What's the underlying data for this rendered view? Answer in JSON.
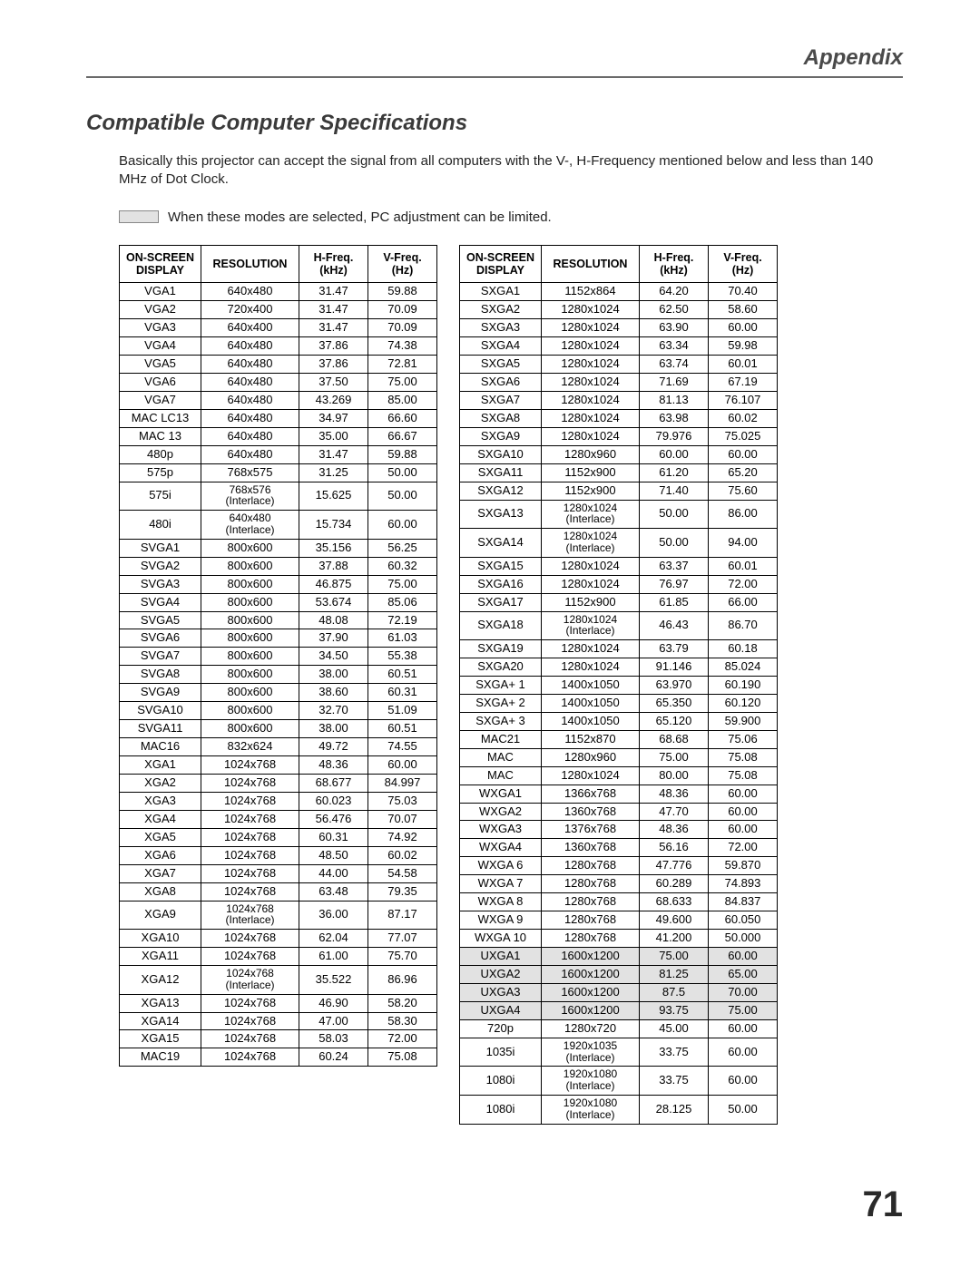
{
  "header": {
    "title": "Appendix"
  },
  "section": {
    "title": "Compatible Computer Specifications",
    "intro": "Basically this projector can accept the signal from all computers with the V-, H-Frequency mentioned below and less than 140 MHz of Dot Clock.",
    "legend": "When these modes are selected, PC adjustment can be limited."
  },
  "table_headers": {
    "display": "ON-SCREEN DISPLAY",
    "resolution": "RESOLUTION",
    "hfreq": "H-Freq. (kHz)",
    "vfreq": "V-Freq. (Hz)"
  },
  "colors": {
    "limited_bg": "#e2e2e2",
    "border": "#000000",
    "text": "#222222",
    "heading": "#3a3a3a"
  },
  "left_rows": [
    {
      "d": "VGA1",
      "r": "640x480",
      "h": "31.47",
      "v": "59.88"
    },
    {
      "d": "VGA2",
      "r": "720x400",
      "h": "31.47",
      "v": "70.09"
    },
    {
      "d": "VGA3",
      "r": "640x400",
      "h": "31.47",
      "v": "70.09"
    },
    {
      "d": "VGA4",
      "r": "640x480",
      "h": "37.86",
      "v": "74.38"
    },
    {
      "d": "VGA5",
      "r": "640x480",
      "h": "37.86",
      "v": "72.81"
    },
    {
      "d": "VGA6",
      "r": "640x480",
      "h": "37.50",
      "v": "75.00"
    },
    {
      "d": "VGA7",
      "r": "640x480",
      "h": "43.269",
      "v": "85.00"
    },
    {
      "d": "MAC LC13",
      "r": "640x480",
      "h": "34.97",
      "v": "66.60"
    },
    {
      "d": "MAC 13",
      "r": "640x480",
      "h": "35.00",
      "v": "66.67"
    },
    {
      "d": "480p",
      "r": "640x480",
      "h": "31.47",
      "v": "59.88"
    },
    {
      "d": "575p",
      "r": "768x575",
      "h": "31.25",
      "v": "50.00"
    },
    {
      "d": "575i",
      "r": "768x576",
      "r2": "(Interlace)",
      "h": "15.625",
      "v": "50.00"
    },
    {
      "d": "480i",
      "r": "640x480",
      "r2": "(Interlace)",
      "h": "15.734",
      "v": "60.00"
    },
    {
      "d": "SVGA1",
      "r": "800x600",
      "h": "35.156",
      "v": "56.25"
    },
    {
      "d": "SVGA2",
      "r": "800x600",
      "h": "37.88",
      "v": "60.32"
    },
    {
      "d": "SVGA3",
      "r": "800x600",
      "h": "46.875",
      "v": "75.00"
    },
    {
      "d": "SVGA4",
      "r": "800x600",
      "h": "53.674",
      "v": "85.06"
    },
    {
      "d": "SVGA5",
      "r": "800x600",
      "h": "48.08",
      "v": "72.19"
    },
    {
      "d": "SVGA6",
      "r": "800x600",
      "h": "37.90",
      "v": "61.03"
    },
    {
      "d": "SVGA7",
      "r": "800x600",
      "h": "34.50",
      "v": "55.38"
    },
    {
      "d": "SVGA8",
      "r": "800x600",
      "h": "38.00",
      "v": "60.51"
    },
    {
      "d": "SVGA9",
      "r": "800x600",
      "h": "38.60",
      "v": "60.31"
    },
    {
      "d": "SVGA10",
      "r": "800x600",
      "h": "32.70",
      "v": "51.09"
    },
    {
      "d": "SVGA11",
      "r": "800x600",
      "h": "38.00",
      "v": "60.51"
    },
    {
      "d": "MAC16",
      "r": "832x624",
      "h": "49.72",
      "v": "74.55"
    },
    {
      "d": "XGA1",
      "r": "1024x768",
      "h": "48.36",
      "v": "60.00"
    },
    {
      "d": "XGA2",
      "r": "1024x768",
      "h": "68.677",
      "v": "84.997"
    },
    {
      "d": "XGA3",
      "r": "1024x768",
      "h": "60.023",
      "v": "75.03"
    },
    {
      "d": "XGA4",
      "r": "1024x768",
      "h": "56.476",
      "v": "70.07"
    },
    {
      "d": "XGA5",
      "r": "1024x768",
      "h": "60.31",
      "v": "74.92"
    },
    {
      "d": "XGA6",
      "r": "1024x768",
      "h": "48.50",
      "v": "60.02"
    },
    {
      "d": "XGA7",
      "r": "1024x768",
      "h": "44.00",
      "v": "54.58"
    },
    {
      "d": "XGA8",
      "r": "1024x768",
      "h": "63.48",
      "v": "79.35"
    },
    {
      "d": "XGA9",
      "r": "1024x768",
      "r2": "(Interlace)",
      "h": "36.00",
      "v": "87.17"
    },
    {
      "d": "XGA10",
      "r": "1024x768",
      "h": "62.04",
      "v": "77.07"
    },
    {
      "d": "XGA11",
      "r": "1024x768",
      "h": "61.00",
      "v": "75.70"
    },
    {
      "d": "XGA12",
      "r": "1024x768",
      "r2": "(Interlace)",
      "h": "35.522",
      "v": "86.96"
    },
    {
      "d": "XGA13",
      "r": "1024x768",
      "h": "46.90",
      "v": "58.20"
    },
    {
      "d": "XGA14",
      "r": "1024x768",
      "h": "47.00",
      "v": "58.30"
    },
    {
      "d": "XGA15",
      "r": "1024x768",
      "h": "58.03",
      "v": "72.00"
    },
    {
      "d": "MAC19",
      "r": "1024x768",
      "h": "60.24",
      "v": "75.08"
    }
  ],
  "right_rows": [
    {
      "d": "SXGA1",
      "r": "1152x864",
      "h": "64.20",
      "v": "70.40"
    },
    {
      "d": "SXGA2",
      "r": "1280x1024",
      "h": "62.50",
      "v": "58.60"
    },
    {
      "d": "SXGA3",
      "r": "1280x1024",
      "h": "63.90",
      "v": "60.00"
    },
    {
      "d": "SXGA4",
      "r": "1280x1024",
      "h": "63.34",
      "v": "59.98"
    },
    {
      "d": "SXGA5",
      "r": "1280x1024",
      "h": "63.74",
      "v": "60.01"
    },
    {
      "d": "SXGA6",
      "r": "1280x1024",
      "h": "71.69",
      "v": "67.19"
    },
    {
      "d": "SXGA7",
      "r": "1280x1024",
      "h": "81.13",
      "v": "76.107"
    },
    {
      "d": "SXGA8",
      "r": "1280x1024",
      "h": "63.98",
      "v": "60.02"
    },
    {
      "d": "SXGA9",
      "r": "1280x1024",
      "h": "79.976",
      "v": "75.025"
    },
    {
      "d": "SXGA10",
      "r": "1280x960",
      "h": "60.00",
      "v": "60.00"
    },
    {
      "d": "SXGA11",
      "r": "1152x900",
      "h": "61.20",
      "v": "65.20"
    },
    {
      "d": "SXGA12",
      "r": "1152x900",
      "h": "71.40",
      "v": "75.60"
    },
    {
      "d": "SXGA13",
      "r": "1280x1024",
      "r2": "(Interlace)",
      "h": "50.00",
      "v": "86.00"
    },
    {
      "d": "SXGA14",
      "r": "1280x1024",
      "r2": "(Interlace)",
      "h": "50.00",
      "v": "94.00"
    },
    {
      "d": "SXGA15",
      "r": "1280x1024",
      "h": "63.37",
      "v": "60.01"
    },
    {
      "d": "SXGA16",
      "r": "1280x1024",
      "h": "76.97",
      "v": "72.00"
    },
    {
      "d": "SXGA17",
      "r": "1152x900",
      "h": "61.85",
      "v": "66.00"
    },
    {
      "d": "SXGA18",
      "r": "1280x1024",
      "r2": "(Interlace)",
      "h": "46.43",
      "v": "86.70"
    },
    {
      "d": "SXGA19",
      "r": "1280x1024",
      "h": "63.79",
      "v": "60.18"
    },
    {
      "d": "SXGA20",
      "r": "1280x1024",
      "h": "91.146",
      "v": "85.024"
    },
    {
      "d": "SXGA+ 1",
      "r": "1400x1050",
      "h": "63.970",
      "v": "60.190"
    },
    {
      "d": "SXGA+ 2",
      "r": "1400x1050",
      "h": "65.350",
      "v": "60.120"
    },
    {
      "d": "SXGA+ 3",
      "r": "1400x1050",
      "h": "65.120",
      "v": "59.900"
    },
    {
      "d": "MAC21",
      "r": "1152x870",
      "h": "68.68",
      "v": "75.06"
    },
    {
      "d": "MAC",
      "r": "1280x960",
      "h": "75.00",
      "v": "75.08"
    },
    {
      "d": "MAC",
      "r": "1280x1024",
      "h": "80.00",
      "v": "75.08"
    },
    {
      "d": "WXGA1",
      "r": "1366x768",
      "h": "48.36",
      "v": "60.00"
    },
    {
      "d": "WXGA2",
      "r": "1360x768",
      "h": "47.70",
      "v": "60.00"
    },
    {
      "d": "WXGA3",
      "r": "1376x768",
      "h": "48.36",
      "v": "60.00"
    },
    {
      "d": "WXGA4",
      "r": "1360x768",
      "h": "56.16",
      "v": "72.00"
    },
    {
      "d": "WXGA 6",
      "r": "1280x768",
      "h": "47.776",
      "v": "59.870"
    },
    {
      "d": "WXGA 7",
      "r": "1280x768",
      "h": "60.289",
      "v": "74.893"
    },
    {
      "d": "WXGA 8",
      "r": "1280x768",
      "h": "68.633",
      "v": "84.837"
    },
    {
      "d": "WXGA 9",
      "r": "1280x768",
      "h": "49.600",
      "v": "60.050"
    },
    {
      "d": "WXGA 10",
      "r": "1280x768",
      "h": "41.200",
      "v": "50.000"
    },
    {
      "d": "UXGA1",
      "r": "1600x1200",
      "h": "75.00",
      "v": "60.00",
      "limited": true
    },
    {
      "d": "UXGA2",
      "r": "1600x1200",
      "h": "81.25",
      "v": "65.00",
      "limited": true
    },
    {
      "d": "UXGA3",
      "r": "1600x1200",
      "h": "87.5",
      "v": "70.00",
      "limited": true
    },
    {
      "d": "UXGA4",
      "r": "1600x1200",
      "h": "93.75",
      "v": "75.00",
      "limited": true
    },
    {
      "d": "720p",
      "r": "1280x720",
      "h": "45.00",
      "v": "60.00"
    },
    {
      "d": "1035i",
      "r": "1920x1035",
      "r2": "(Interlace)",
      "h": "33.75",
      "v": "60.00"
    },
    {
      "d": "1080i",
      "r": "1920x1080",
      "r2": "(Interlace)",
      "h": "33.75",
      "v": "60.00"
    },
    {
      "d": "1080i",
      "r": "1920x1080",
      "r2": "(Interlace)",
      "h": "28.125",
      "v": "50.00"
    }
  ],
  "page_number": "71"
}
